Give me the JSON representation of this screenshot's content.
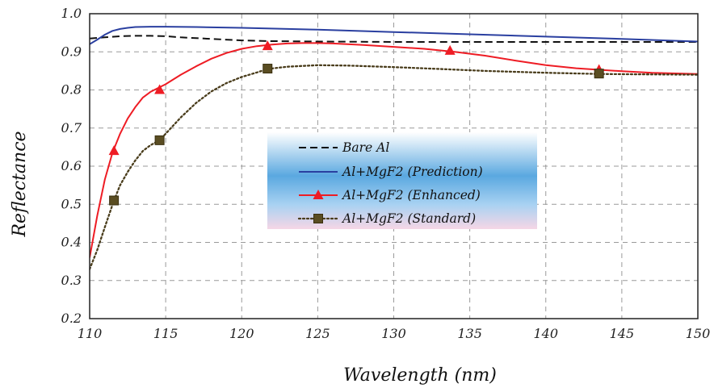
{
  "chart_data": {
    "type": "line",
    "title": "",
    "xlabel": "Wavelength (nm)",
    "ylabel": "Reflectance",
    "xlim": [
      110,
      150
    ],
    "ylim": [
      0.2,
      1.0
    ],
    "xticks": [
      110,
      115,
      120,
      125,
      130,
      135,
      140,
      145,
      150
    ],
    "yticks": [
      0.2,
      0.3,
      0.4,
      0.5,
      0.6,
      0.7,
      0.8,
      0.9,
      1.0
    ],
    "grid": true,
    "legend_position": "center",
    "series": [
      {
        "name": "Bare Al",
        "style": "dashed",
        "color": "#111111",
        "marker": "none",
        "x": [
          110,
          111,
          112,
          113,
          114,
          115,
          116,
          118,
          120,
          122,
          125,
          130,
          135,
          140,
          145,
          150
        ],
        "y": [
          0.935,
          0.938,
          0.941,
          0.942,
          0.942,
          0.941,
          0.938,
          0.934,
          0.93,
          0.928,
          0.927,
          0.926,
          0.926,
          0.926,
          0.926,
          0.926
        ]
      },
      {
        "name": "Al+MgF2 (Prediction)",
        "style": "solid",
        "color": "#2a3fa0",
        "marker": "none",
        "x": [
          110,
          110.5,
          111,
          111.5,
          112,
          112.5,
          113,
          114,
          115,
          117,
          120,
          125,
          130,
          135,
          140,
          145,
          150
        ],
        "y": [
          0.92,
          0.932,
          0.945,
          0.955,
          0.96,
          0.963,
          0.965,
          0.966,
          0.966,
          0.965,
          0.963,
          0.958,
          0.952,
          0.946,
          0.94,
          0.934,
          0.927
        ]
      },
      {
        "name": "Al+MgF2 (Enhanced)",
        "style": "solid",
        "color": "#ee1c24",
        "marker": "triangle",
        "x": [
          110,
          110.5,
          111,
          111.5,
          112,
          112.5,
          113,
          113.5,
          114,
          114.5,
          115,
          116,
          117,
          118,
          119,
          120,
          121,
          122,
          123,
          124,
          125,
          126,
          128,
          130,
          132,
          134,
          136,
          138,
          140,
          142,
          143.5,
          145,
          147,
          150
        ],
        "y": [
          0.36,
          0.47,
          0.565,
          0.635,
          0.685,
          0.725,
          0.755,
          0.78,
          0.795,
          0.805,
          0.815,
          0.84,
          0.862,
          0.882,
          0.897,
          0.908,
          0.915,
          0.919,
          0.922,
          0.923,
          0.923,
          0.922,
          0.918,
          0.913,
          0.908,
          0.9,
          0.89,
          0.877,
          0.865,
          0.857,
          0.853,
          0.849,
          0.845,
          0.842
        ],
        "markers_x": [
          111.6,
          114.6,
          121.7,
          133.7,
          143.5
        ],
        "markers_y": [
          0.64,
          0.8,
          0.915,
          0.903,
          0.853
        ]
      },
      {
        "name": "Al+MgF2 (Standard)",
        "style": "dotted",
        "color": "#4a3d1c",
        "marker": "square",
        "x": [
          110,
          110.5,
          111,
          111.6,
          112,
          112.5,
          113,
          113.5,
          114,
          114.6,
          115,
          116,
          117,
          118,
          119,
          120,
          121,
          121.7,
          123,
          125,
          127,
          130,
          133,
          136,
          140,
          143.5,
          146,
          150
        ],
        "y": [
          0.33,
          0.38,
          0.44,
          0.51,
          0.55,
          0.585,
          0.615,
          0.64,
          0.655,
          0.668,
          0.685,
          0.728,
          0.766,
          0.796,
          0.818,
          0.834,
          0.846,
          0.855,
          0.861,
          0.865,
          0.864,
          0.86,
          0.855,
          0.85,
          0.845,
          0.842,
          0.841,
          0.84
        ],
        "markers_x": [
          111.6,
          114.6,
          121.7,
          143.5
        ],
        "markers_y": [
          0.51,
          0.668,
          0.856,
          0.843
        ]
      }
    ]
  }
}
